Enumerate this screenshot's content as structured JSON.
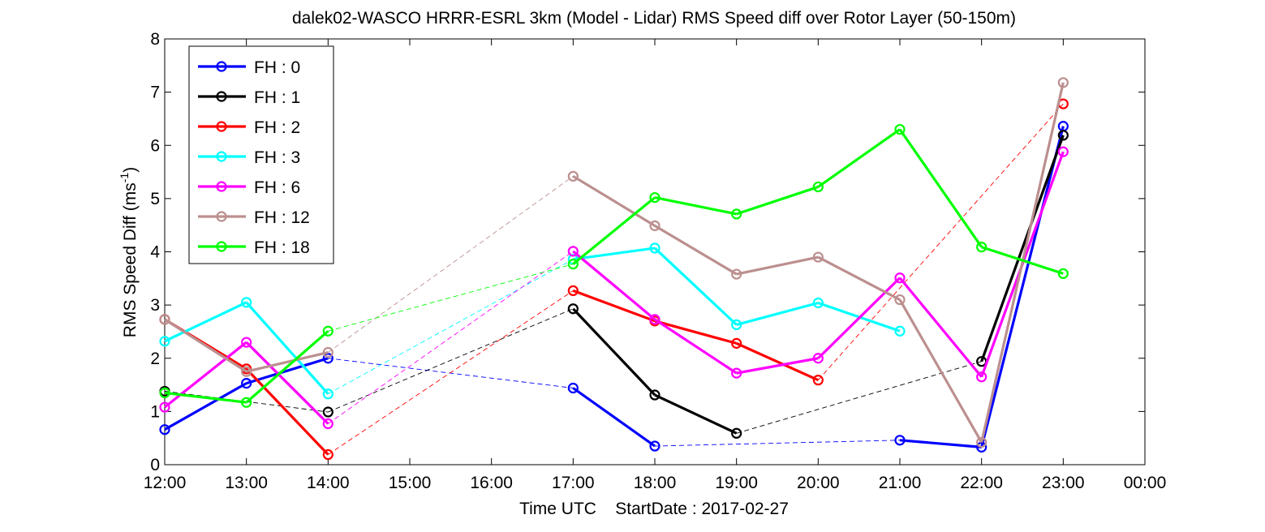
{
  "chart_data": {
    "type": "line",
    "title": "dalek02-WASCO HRRR-ESRL 3km (Model - Lidar) RMS Speed diff over Rotor Layer (50-150m)",
    "xlabel": "Time UTC    StartDate : 2017-02-27",
    "ylabel": "RMS Speed Diff (ms",
    "ylabel_sup": "-1",
    "ylabel_end": ")",
    "x_ticks": [
      "12:00",
      "13:00",
      "14:00",
      "15:00",
      "16:00",
      "17:00",
      "18:00",
      "19:00",
      "20:00",
      "21:00",
      "22:00",
      "23:00",
      "00:00"
    ],
    "xlim": [
      12,
      24
    ],
    "ylim": [
      0,
      8
    ],
    "y_ticks": [
      "0",
      "1",
      "2",
      "3",
      "4",
      "5",
      "6",
      "7",
      "8"
    ],
    "grid": false,
    "legend_position": "top-left",
    "series": [
      {
        "name": "FH : 0",
        "color": "#0000ff",
        "points": [
          [
            12,
            0.66
          ],
          [
            13,
            1.53
          ],
          [
            14,
            2.0
          ],
          [
            17,
            1.44
          ],
          [
            18,
            0.35
          ],
          [
            21,
            0.46
          ],
          [
            22,
            0.33
          ],
          [
            23,
            6.36
          ]
        ]
      },
      {
        "name": "FH : 1",
        "color": "#000000",
        "points": [
          [
            12,
            1.38
          ],
          [
            14,
            0.99
          ],
          [
            17,
            2.93
          ],
          [
            18,
            1.31
          ],
          [
            19,
            0.59
          ],
          [
            22,
            1.94
          ],
          [
            23,
            6.19
          ]
        ]
      },
      {
        "name": "FH : 2",
        "color": "#ff0000",
        "points": [
          [
            12,
            2.73
          ],
          [
            13,
            1.8
          ],
          [
            14,
            0.19
          ],
          [
            17,
            3.27
          ],
          [
            18,
            2.7
          ],
          [
            19,
            2.28
          ],
          [
            20,
            1.59
          ],
          [
            23,
            6.78
          ]
        ]
      },
      {
        "name": "FH : 3",
        "color": "#00ffff",
        "points": [
          [
            12,
            2.32
          ],
          [
            13,
            3.05
          ],
          [
            14,
            1.33
          ],
          [
            17,
            3.86
          ],
          [
            18,
            4.07
          ],
          [
            19,
            2.63
          ],
          [
            20,
            3.04
          ],
          [
            21,
            2.51
          ]
        ]
      },
      {
        "name": "FH : 6",
        "color": "#ff00ff",
        "points": [
          [
            12,
            1.08
          ],
          [
            13,
            2.3
          ],
          [
            14,
            0.77
          ],
          [
            17,
            4.01
          ],
          [
            18,
            2.73
          ],
          [
            19,
            1.72
          ],
          [
            20,
            2.0
          ],
          [
            21,
            3.51
          ],
          [
            22,
            1.65
          ],
          [
            23,
            5.88
          ]
        ]
      },
      {
        "name": "FH : 12",
        "color": "#bc8f8f",
        "points": [
          [
            12,
            2.73
          ],
          [
            13,
            1.75
          ],
          [
            14,
            2.11
          ],
          [
            17,
            5.42
          ],
          [
            18,
            4.49
          ],
          [
            19,
            3.58
          ],
          [
            20,
            3.9
          ],
          [
            21,
            3.1
          ],
          [
            22,
            0.42
          ],
          [
            23,
            7.18
          ]
        ]
      },
      {
        "name": "FH : 18",
        "color": "#00ff00",
        "points": [
          [
            12,
            1.35
          ],
          [
            13,
            1.17
          ],
          [
            14,
            2.51
          ],
          [
            17,
            3.77
          ],
          [
            18,
            5.02
          ],
          [
            19,
            4.71
          ],
          [
            20,
            5.22
          ],
          [
            21,
            6.3
          ],
          [
            22,
            4.09
          ],
          [
            23,
            3.59
          ]
        ]
      }
    ]
  }
}
